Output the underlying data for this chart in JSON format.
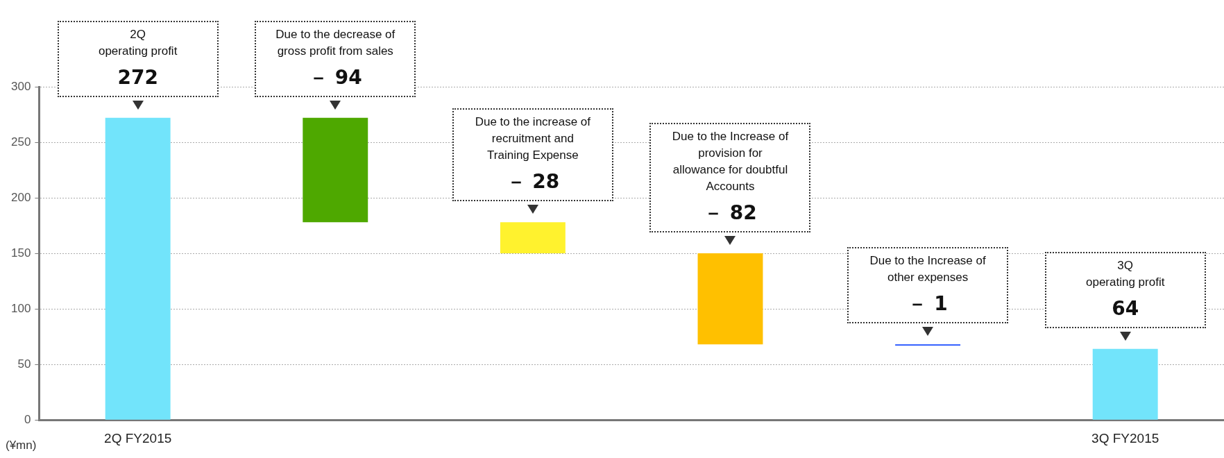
{
  "chart_data": {
    "type": "bar",
    "ylabel": "(¥mn)",
    "categories": [
      "2Q FY2015",
      null,
      null,
      null,
      null,
      "3Q FY2015"
    ],
    "values": [
      272,
      -94,
      -28,
      -82,
      -1,
      64
    ],
    "base": [
      0,
      272,
      178,
      150,
      68,
      0
    ],
    "colors": [
      "#72e4fb",
      "#4ea800",
      "#fff22e",
      "#ffc000",
      "#1a4bff",
      "#72e4fb"
    ],
    "value_labels": [
      "272",
      "－ 94",
      "－ 28",
      "－ 82",
      "－ 1",
      "64"
    ],
    "annotations": [
      "2Q\noperating profit",
      "Due to the decrease of\ngross profit from sales",
      "Due to the increase of\nrecruitment and\nTraining  Expense",
      "Due to the Increase of\nprovision for\nallowance for doubtful\nAccounts",
      "Due to the Increase of\nother expenses",
      "3Q\noperating profit"
    ],
    "ylim": [
      0,
      300
    ],
    "yticks": [
      0,
      50,
      100,
      150,
      200,
      250,
      300
    ],
    "grid": "y",
    "legend": false
  }
}
